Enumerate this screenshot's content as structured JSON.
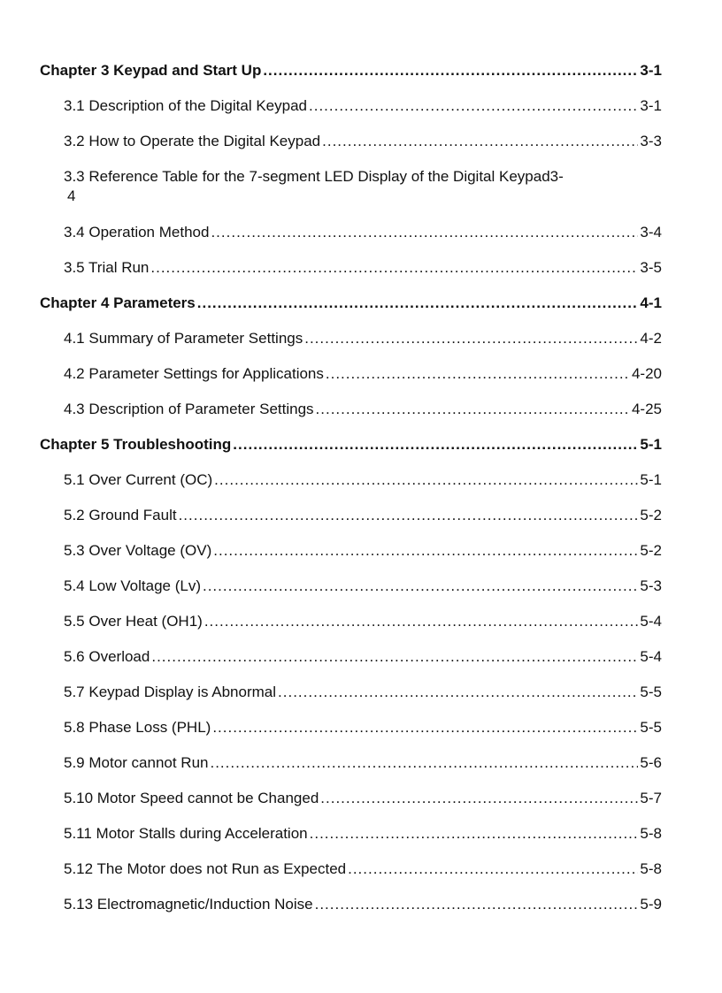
{
  "toc": [
    {
      "level": "chapter",
      "title": "Chapter 3 Keypad and Start Up",
      "page": "3-1"
    },
    {
      "level": "section",
      "title": "3.1 Description of the Digital Keypad",
      "page": "3-1"
    },
    {
      "level": "section",
      "title": "3.2 How to Operate the Digital Keypad",
      "page": "3-3"
    },
    {
      "level": "section",
      "title": "3.3 Reference Table for the 7-segment LED Display of the Digital Keypad",
      "page": "3-4",
      "wrapped": true
    },
    {
      "level": "section",
      "title": "3.4 Operation Method",
      "page": "3-4"
    },
    {
      "level": "section",
      "title": "3.5 Trial Run",
      "page": "3-5"
    },
    {
      "level": "chapter",
      "title": "Chapter 4 Parameters",
      "page": "4-1"
    },
    {
      "level": "section",
      "title": "4.1 Summary of Parameter Settings",
      "page": "4-2"
    },
    {
      "level": "section",
      "title": "4.2 Parameter Settings for Applications",
      "page": "4-20"
    },
    {
      "level": "section",
      "title": "4.3 Description of Parameter Settings",
      "page": "4-25"
    },
    {
      "level": "chapter",
      "title": "Chapter 5 Troubleshooting",
      "page": "5-1"
    },
    {
      "level": "section",
      "title": "5.1 Over Current (OC)",
      "page": "5-1"
    },
    {
      "level": "section",
      "title": "5.2 Ground Fault",
      "page": "5-2"
    },
    {
      "level": "section",
      "title": "5.3 Over Voltage (OV)",
      "page": "5-2"
    },
    {
      "level": "section",
      "title": "5.4 Low Voltage (Lv)",
      "page": "5-3"
    },
    {
      "level": "section",
      "title": "5.5 Over Heat (OH1)",
      "page": "5-4"
    },
    {
      "level": "section",
      "title": "5.6 Overload",
      "page": "5-4"
    },
    {
      "level": "section",
      "title": "5.7 Keypad Display is Abnormal",
      "page": "5-5"
    },
    {
      "level": "section",
      "title": "5.8 Phase Loss (PHL)",
      "page": "5-5"
    },
    {
      "level": "section",
      "title": "5.9 Motor cannot Run",
      "page": "5-6"
    },
    {
      "level": "section",
      "title": "5.10 Motor Speed cannot be Changed",
      "page": "5-7"
    },
    {
      "level": "section",
      "title": "5.11 Motor Stalls during Acceleration",
      "page": "5-8"
    },
    {
      "level": "section",
      "title": "5.12 The Motor does not Run as Expected",
      "page": "5-8"
    },
    {
      "level": "section",
      "title": "5.13 Electromagnetic/Induction Noise",
      "page": "5-9"
    }
  ]
}
